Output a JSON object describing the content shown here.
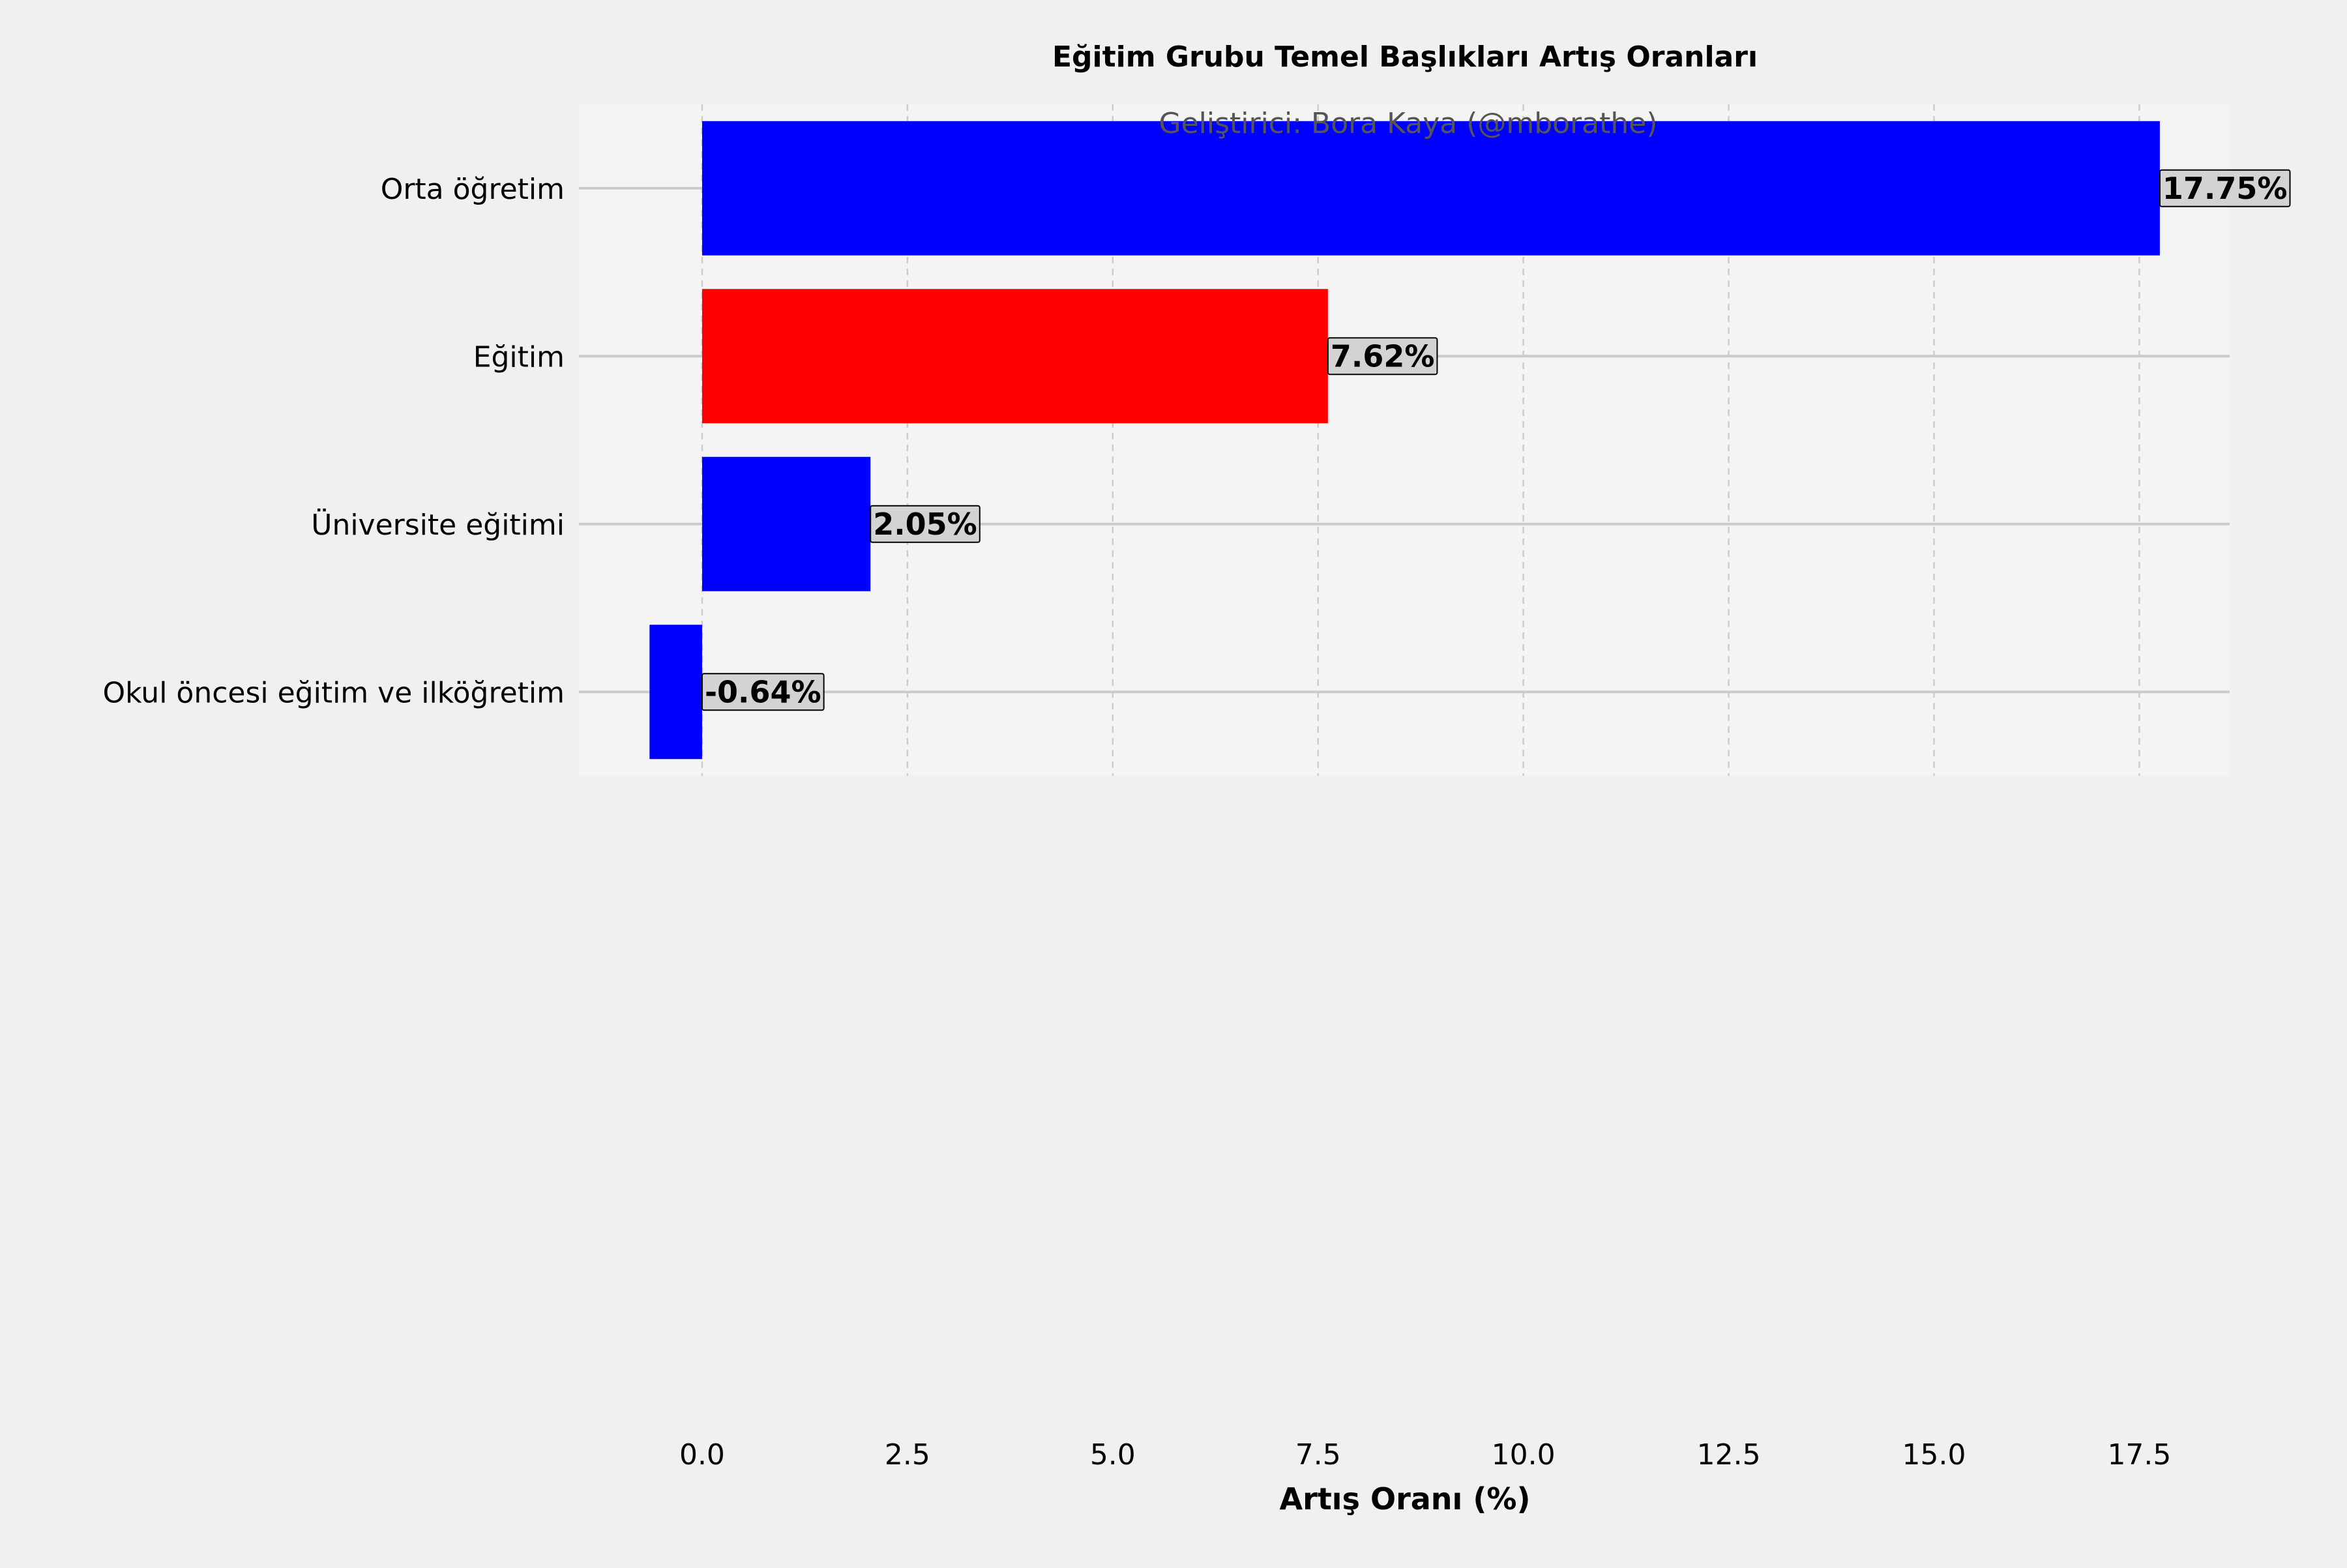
{
  "chart_data": {
    "type": "bar",
    "orientation": "horizontal",
    "title": "Eğitim Grubu Temel Başlıkları Artış Oranları",
    "subtitle": "Geliştirici: Bora Kaya (@mborathe)",
    "xlabel": "Artış Oranı (%)",
    "ylabel": "",
    "xlim": [
      -1.5,
      18.6
    ],
    "xticks": [
      0.0,
      2.5,
      5.0,
      7.5,
      10.0,
      12.5,
      15.0,
      17.5
    ],
    "xtick_labels": [
      "0.0",
      "2.5",
      "5.0",
      "7.5",
      "10.0",
      "12.5",
      "15.0",
      "17.5"
    ],
    "grid": true,
    "categories": [
      "Orta öğretim",
      "Eğitim",
      "Üniversite eğitimi",
      "Okul öncesi eğitim ve ilköğretim"
    ],
    "values": [
      17.75,
      7.62,
      2.05,
      -0.64
    ],
    "data_labels": [
      "17.75%",
      "7.62%",
      "2.05%",
      "-0.64%"
    ],
    "colors": [
      "#0000ff",
      "#ff0000",
      "#0000ff",
      "#0000ff"
    ],
    "background": "#f4f4f4",
    "figure_background": "#f0f0f0"
  }
}
